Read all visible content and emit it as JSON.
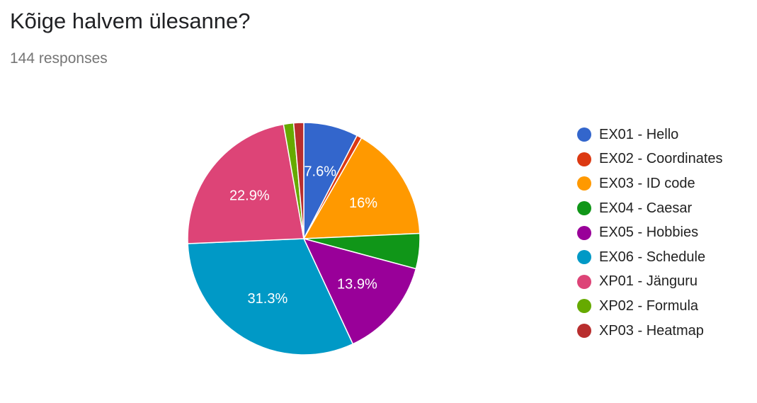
{
  "header": {
    "title": "Kõige halvem ülesanne?",
    "responses": "144 responses"
  },
  "chart_data": {
    "type": "pie",
    "legend_position": "right",
    "start_angle_deg": 90,
    "direction": "clockwise",
    "slices": [
      {
        "name": "EX01 - Hello",
        "value": 7.6,
        "label": "7.6%",
        "color": "#3366cc"
      },
      {
        "name": "EX02 - Coordinates",
        "value": 0.7,
        "label": "",
        "color": "#dc3912"
      },
      {
        "name": "EX03 - ID code",
        "value": 16.0,
        "label": "16%",
        "color": "#ff9900"
      },
      {
        "name": "EX04 - Caesar",
        "value": 4.9,
        "label": "",
        "color": "#109618"
      },
      {
        "name": "EX05 - Hobbies",
        "value": 13.9,
        "label": "13.9%",
        "color": "#990099"
      },
      {
        "name": "EX06 - Schedule",
        "value": 31.3,
        "label": "31.3%",
        "color": "#0099c6"
      },
      {
        "name": "XP01 - Jänguru",
        "value": 22.9,
        "label": "22.9%",
        "color": "#dd4477"
      },
      {
        "name": "XP02 - Formula",
        "value": 1.4,
        "label": "",
        "color": "#66aa00"
      },
      {
        "name": "XP03 - Heatmap",
        "value": 1.4,
        "label": "",
        "color": "#b82e2e"
      }
    ]
  }
}
